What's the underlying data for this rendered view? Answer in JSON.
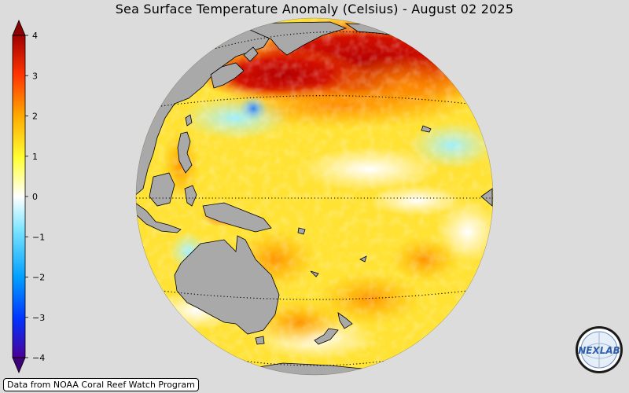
{
  "title": "Sea Surface Temperature Anomaly (Celsius) - August 02 2025",
  "colorbar": {
    "ticks": [
      "4",
      "3",
      "2",
      "1",
      "0",
      "−1",
      "−2",
      "−3",
      "−4"
    ],
    "min": -4,
    "max": 4,
    "colors": [
      "#4b0096",
      "#0033ff",
      "#00a0ff",
      "#7fe6ff",
      "#ffffff",
      "#ffff33",
      "#ffaa00",
      "#ff3300",
      "#a00000"
    ]
  },
  "source": "Data from NOAA Coral Reef Watch Program",
  "logo": {
    "text": "NEXLAB"
  },
  "colors": {
    "background": "#dcdcdc",
    "land": "#a9a9a9"
  }
}
